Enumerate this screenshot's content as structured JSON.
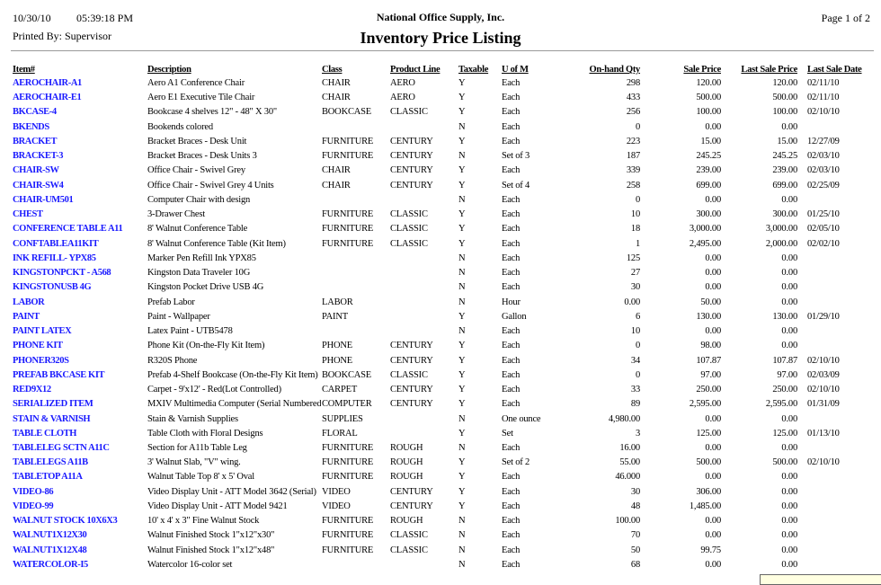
{
  "header": {
    "date": "10/30/10",
    "time": "05:39:18 PM",
    "printed_by": "Printed By: Supervisor",
    "company": "National Office Supply, Inc.",
    "title": "Inventory Price Listing",
    "page": "Page 1 of  2"
  },
  "columns": [
    "Item#",
    "Description",
    "Class",
    "Product Line",
    "Taxable",
    "U of M",
    "On-hand Qty",
    "Sale Price",
    "Last Sale Price",
    "Last Sale Date"
  ],
  "link_color": "#1a1aff",
  "rows": [
    [
      "AEROCHAIR-A1",
      "Aero A1 Conference Chair",
      "CHAIR",
      "AERO",
      "Y",
      "Each",
      "298",
      "120.00",
      "120.00",
      "02/11/10"
    ],
    [
      "AEROCHAIR-E1",
      "Aero E1 Executive Tile Chair",
      "CHAIR",
      "AERO",
      "Y",
      "Each",
      "433",
      "500.00",
      "500.00",
      "02/11/10"
    ],
    [
      "BKCASE-4",
      "Bookcase 4 shelves 12\" - 48\" X 30\"",
      "BOOKCASE",
      "CLASSIC",
      "Y",
      "Each",
      "256",
      "100.00",
      "100.00",
      "02/10/10"
    ],
    [
      "BKENDS",
      "Bookends colored",
      "",
      "",
      "N",
      "Each",
      "0",
      "0.00",
      "0.00",
      ""
    ],
    [
      "BRACKET",
      "Bracket Braces - Desk Unit",
      "FURNITURE",
      "CENTURY",
      "Y",
      "Each",
      "223",
      "15.00",
      "15.00",
      "12/27/09"
    ],
    [
      "BRACKET-3",
      "Bracket Braces - Desk Units 3",
      "FURNITURE",
      "CENTURY",
      "N",
      "Set of 3",
      "187",
      "245.25",
      "245.25",
      "02/03/10"
    ],
    [
      "CHAIR-SW",
      "Office Chair - Swivel Grey",
      "CHAIR",
      "CENTURY",
      "Y",
      "Each",
      "339",
      "239.00",
      "239.00",
      "02/03/10"
    ],
    [
      "CHAIR-SW4",
      "Office Chair - Swivel Grey 4 Units",
      "CHAIR",
      "CENTURY",
      "Y",
      "Set of 4",
      "258",
      "699.00",
      "699.00",
      "02/25/09"
    ],
    [
      "CHAIR-UM501",
      "Computer Chair with design",
      "",
      "",
      "N",
      "Each",
      "0",
      "0.00",
      "0.00",
      ""
    ],
    [
      "CHEST",
      "3-Drawer Chest",
      "FURNITURE",
      "CLASSIC",
      "Y",
      "Each",
      "10",
      "300.00",
      "300.00",
      "01/25/10"
    ],
    [
      "CONFERENCE TABLE A11",
      "8' Walnut Conference Table",
      "FURNITURE",
      "CLASSIC",
      "Y",
      "Each",
      "18",
      "3,000.00",
      "3,000.00",
      "02/05/10"
    ],
    [
      "CONFTABLEA11KIT",
      "8' Walnut Conference Table (Kit Item)",
      "FURNITURE",
      "CLASSIC",
      "Y",
      "Each",
      "1",
      "2,495.00",
      "2,000.00",
      "02/02/10"
    ],
    [
      "INK REFILL- YPX85",
      "Marker Pen Refill Ink YPX85",
      "",
      "",
      "N",
      "Each",
      "125",
      "0.00",
      "0.00",
      ""
    ],
    [
      "KINGSTONPCKT - A568",
      "Kingston Data Traveler 10G",
      "",
      "",
      "N",
      "Each",
      "27",
      "0.00",
      "0.00",
      ""
    ],
    [
      "KINGSTONUSB 4G",
      "Kingston Pocket Drive USB 4G",
      "",
      "",
      "N",
      "Each",
      "30",
      "0.00",
      "0.00",
      ""
    ],
    [
      "LABOR",
      "Prefab Labor",
      "LABOR",
      "",
      "N",
      "Hour",
      "0.00",
      "50.00",
      "0.00",
      ""
    ],
    [
      "PAINT",
      "Paint - Wallpaper",
      "PAINT",
      "",
      "Y",
      "Gallon",
      "6",
      "130.00",
      "130.00",
      "01/29/10"
    ],
    [
      "PAINT LATEX",
      "Latex Paint - UTB5478",
      "",
      "",
      "N",
      "Each",
      "10",
      "0.00",
      "0.00",
      ""
    ],
    [
      "PHONE KIT",
      "Phone Kit (On-the-Fly Kit Item)",
      "PHONE",
      "CENTURY",
      "Y",
      "Each",
      "0",
      "98.00",
      "0.00",
      ""
    ],
    [
      "PHONER320S",
      "R320S Phone",
      "PHONE",
      "CENTURY",
      "Y",
      "Each",
      "34",
      "107.87",
      "107.87",
      "02/10/10"
    ],
    [
      "PREFAB BKCASE KIT",
      "Prefab 4-Shelf Bookcase (On-the-Fly Kit Item)",
      "BOOKCASE",
      "CLASSIC",
      "Y",
      "Each",
      "0",
      "97.00",
      "97.00",
      "02/03/09"
    ],
    [
      "RED9X12",
      "Carpet - 9'x12' - Red(Lot Controlled)",
      "CARPET",
      "CENTURY",
      "Y",
      "Each",
      "33",
      "250.00",
      "250.00",
      "02/10/10"
    ],
    [
      "SERIALIZED ITEM",
      "MXIV Multimedia Computer (Serial Numbered)",
      "COMPUTER",
      "CENTURY",
      "Y",
      "Each",
      "89",
      "2,595.00",
      "2,595.00",
      "01/31/09"
    ],
    [
      "STAIN & VARNISH",
      "Stain & Varnish Supplies",
      "SUPPLIES",
      "",
      "N",
      "One ounce",
      "4,980.00",
      "0.00",
      "0.00",
      ""
    ],
    [
      "TABLE CLOTH",
      "Table Cloth with Floral Designs",
      "FLORAL",
      "",
      "Y",
      "Set",
      "3",
      "125.00",
      "125.00",
      "01/13/10"
    ],
    [
      "TABLELEG SCTN A11C",
      "Section for A11b Table Leg",
      "FURNITURE",
      "ROUGH",
      "N",
      "Each",
      "16.00",
      "0.00",
      "0.00",
      ""
    ],
    [
      "TABLELEGS A11B",
      "3' Walnut Slab, \"V\" wing.",
      "FURNITURE",
      "ROUGH",
      "Y",
      "Set of 2",
      "55.00",
      "500.00",
      "500.00",
      "02/10/10"
    ],
    [
      "TABLETOP A11A",
      "Walnut Table Top 8' x 5' Oval",
      "FURNITURE",
      "ROUGH",
      "Y",
      "Each",
      "46.000",
      "0.00",
      "0.00",
      ""
    ],
    [
      "VIDEO-86",
      "Video Display Unit - ATT Model 3642 (Serial)",
      "VIDEO",
      "CENTURY",
      "Y",
      "Each",
      "30",
      "306.00",
      "0.00",
      ""
    ],
    [
      "VIDEO-99",
      "Video Display Unit - ATT Model 9421",
      "VIDEO",
      "CENTURY",
      "Y",
      "Each",
      "48",
      "1,485.00",
      "0.00",
      ""
    ],
    [
      "WALNUT STOCK 10X6X3",
      "10' x 4' x 3\" Fine Walnut Stock",
      "FURNITURE",
      "ROUGH",
      "N",
      "Each",
      "100.00",
      "0.00",
      "0.00",
      ""
    ],
    [
      "WALNUT1X12X30",
      "Walnut Finished Stock 1\"x12\"x30\"",
      "FURNITURE",
      "CLASSIC",
      "N",
      "Each",
      "70",
      "0.00",
      "0.00",
      ""
    ],
    [
      "WALNUT1X12X48",
      "Walnut Finished Stock 1\"x12\"x48\"",
      "FURNITURE",
      "CLASSIC",
      "N",
      "Each",
      "50",
      "99.75",
      "0.00",
      ""
    ],
    [
      "WATERCOLOR-I5",
      "Watercolor 16-color set",
      "",
      "",
      "N",
      "Each",
      "68",
      "0.00",
      "0.00",
      ""
    ]
  ]
}
